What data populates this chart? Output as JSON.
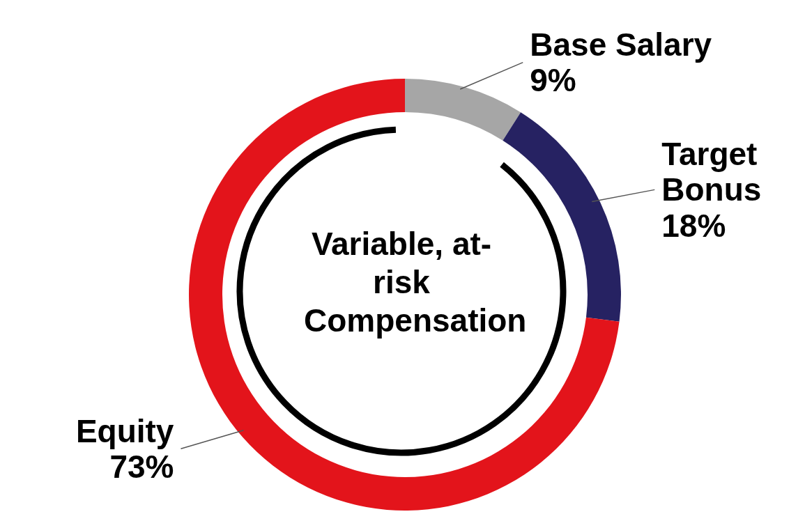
{
  "chart_data": {
    "type": "donut",
    "categories": [
      "Base Salary",
      "Target Bonus",
      "Equity"
    ],
    "values": [
      9,
      18,
      73
    ],
    "colors": [
      "#a6a6a6",
      "#262262",
      "#e3141b"
    ],
    "value_labels": [
      "9%",
      "18%",
      "73%"
    ],
    "annotations": [
      "Variable, at-risk Compensation"
    ],
    "legend": false
  }
}
